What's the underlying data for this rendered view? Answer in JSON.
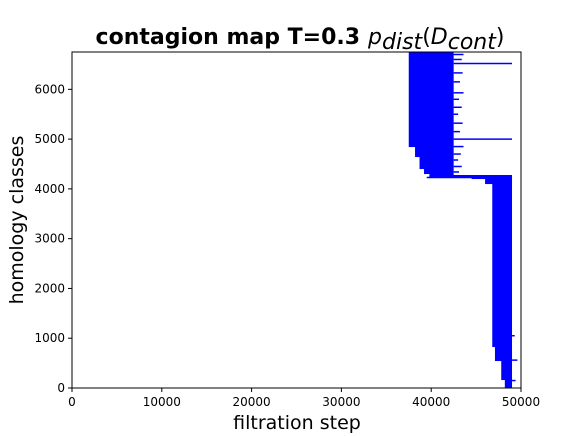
{
  "chart_data": {
    "type": "barcode",
    "title_prefix": "contagion map T=0.3",
    "title_math": {
      "base": "p",
      "sub": "dist",
      "open": "(",
      "inner_base": "D",
      "inner_sub": "cont",
      "close": ")"
    },
    "xlabel": "filtration step",
    "ylabel": "homology classes",
    "xlim": [
      0,
      50000
    ],
    "ylim": [
      0,
      6750
    ],
    "xticks": [
      0,
      10000,
      20000,
      30000,
      40000,
      50000
    ],
    "yticks": [
      0,
      1000,
      2000,
      3000,
      4000,
      5000,
      6000
    ],
    "bar_color": "#0000ff",
    "grid": false,
    "legend": "none",
    "birth_regions": [
      {
        "y_from": 6750,
        "y_to": 4850,
        "birth": 37500
      },
      {
        "y_from": 4850,
        "y_to": 4650,
        "birth": 38200
      },
      {
        "y_from": 4650,
        "y_to": 4400,
        "birth": 38700
      },
      {
        "y_from": 4400,
        "y_to": 4300,
        "birth": 39200
      },
      {
        "y_from": 4300,
        "y_to": 4230,
        "birth": 39800
      },
      {
        "y_from": 4230,
        "y_to": 4200,
        "birth": 44500
      },
      {
        "y_from": 4200,
        "y_to": 4100,
        "birth": 46000
      },
      {
        "y_from": 4100,
        "y_to": 820,
        "birth": 46800
      },
      {
        "y_from": 820,
        "y_to": 550,
        "birth": 47100
      },
      {
        "y_from": 550,
        "y_to": 160,
        "birth": 47800
      },
      {
        "y_from": 160,
        "y_to": 0,
        "birth": 48200
      }
    ],
    "death_regions": [
      {
        "y_from": 6750,
        "y_to": 4280,
        "death": 42500
      },
      {
        "y_from": 4280,
        "y_to": 0,
        "death": 49000
      }
    ],
    "long_bars": [
      {
        "y": 6520,
        "birth": 42500,
        "death": 49000
      },
      {
        "y": 5000,
        "birth": 42500,
        "death": 49000
      },
      {
        "y": 4250,
        "birth": 39800,
        "death": 49000
      },
      {
        "y": 4230,
        "birth": 39500,
        "death": 48200
      }
    ],
    "short_bars": [
      {
        "y": 6700,
        "birth": 42500,
        "death": 43600
      },
      {
        "y": 6600,
        "birth": 42500,
        "death": 43400
      },
      {
        "y": 6330,
        "birth": 42500,
        "death": 43500
      },
      {
        "y": 6150,
        "birth": 42500,
        "death": 43200
      },
      {
        "y": 5930,
        "birth": 42500,
        "death": 43600
      },
      {
        "y": 5800,
        "birth": 42500,
        "death": 43100
      },
      {
        "y": 5640,
        "birth": 42500,
        "death": 43400
      },
      {
        "y": 5500,
        "birth": 42500,
        "death": 43000
      },
      {
        "y": 5320,
        "birth": 42500,
        "death": 43500
      },
      {
        "y": 5150,
        "birth": 42500,
        "death": 43200
      },
      {
        "y": 4850,
        "birth": 42500,
        "death": 43600
      },
      {
        "y": 4700,
        "birth": 42500,
        "death": 43300
      },
      {
        "y": 4580,
        "birth": 42500,
        "death": 43000
      },
      {
        "y": 4450,
        "birth": 42500,
        "death": 43400
      },
      {
        "y": 4340,
        "birth": 42500,
        "death": 43100
      },
      {
        "y": 1050,
        "birth": 49000,
        "death": 49300
      },
      {
        "y": 560,
        "birth": 49000,
        "death": 49600
      },
      {
        "y": 150,
        "birth": 49000,
        "death": 49400
      }
    ]
  }
}
